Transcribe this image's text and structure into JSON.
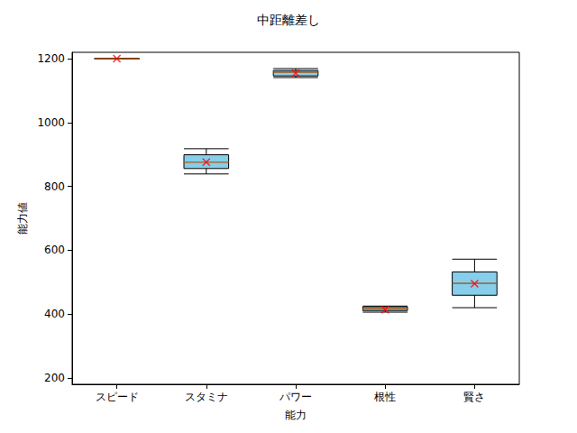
{
  "chart_data": {
    "type": "boxplot",
    "title": "中距離差し",
    "x_label": "能力",
    "y_label": "能力値",
    "categories": [
      "スピード",
      "スタミナ",
      "パワー",
      "根性",
      "賢さ"
    ],
    "series": [
      {
        "type": "boxplot",
        "color": "#87ceeb",
        "values": [
          [
            1200,
            1200,
            1200,
            1200,
            1200
          ],
          [
            839,
            856,
            876,
            899,
            918
          ],
          [
            1141,
            1146,
            1158,
            1163,
            1169
          ],
          [
            406,
            411,
            417,
            423,
            425
          ],
          [
            420,
            459,
            496,
            532,
            572
          ]
        ]
      },
      {
        "type": "median",
        "color": "#ff7f0e",
        "values": [
          1200,
          876,
          1158,
          417,
          496
        ]
      },
      {
        "type": "scatter",
        "color": "#ff0000",
        "marker": "x",
        "values": [
          1200,
          876,
          1155,
          414,
          495
        ]
      }
    ],
    "ylim": [
      180,
      1220
    ],
    "yticks": [
      200,
      400,
      600,
      800,
      1000,
      1200
    ],
    "grid": false
  }
}
